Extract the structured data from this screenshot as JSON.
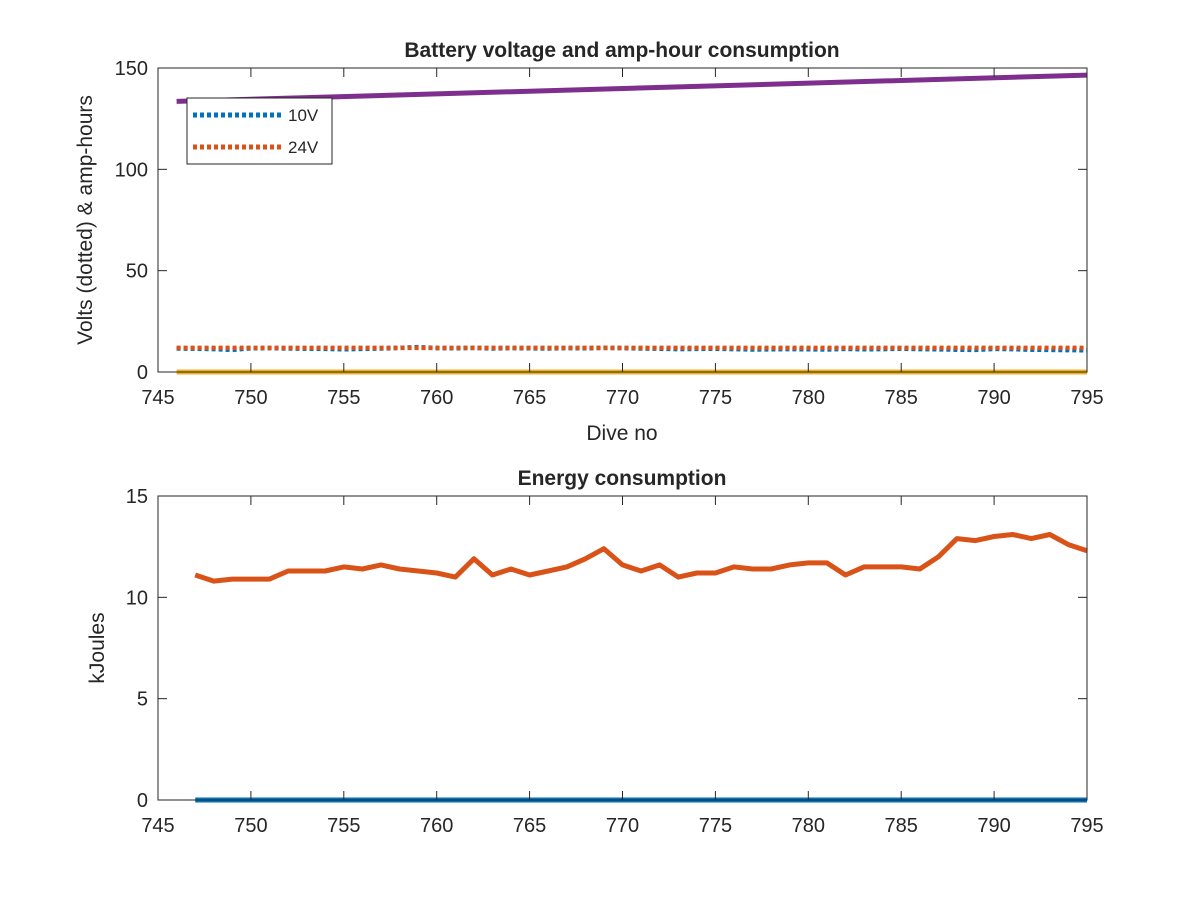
{
  "chart_data": [
    {
      "type": "line",
      "title": "Battery voltage and amp-hour consumption",
      "xlabel": "Dive no",
      "ylabel": "Volts (dotted) & amp-hours",
      "xlim": [
        745,
        795
      ],
      "ylim": [
        0,
        150
      ],
      "xticks": [
        745,
        750,
        755,
        760,
        765,
        770,
        775,
        780,
        785,
        790,
        795
      ],
      "yticks": [
        0,
        50,
        100,
        150
      ],
      "grid": false,
      "legend_position": "top-left",
      "series": [
        {
          "name": "10V",
          "color": "#0072BD",
          "style": "dotted",
          "x": [
            746,
            747,
            748,
            749,
            750,
            751,
            752,
            753,
            754,
            755,
            756,
            757,
            758,
            759,
            760,
            761,
            762,
            763,
            764,
            765,
            766,
            767,
            768,
            769,
            770,
            771,
            772,
            773,
            774,
            775,
            776,
            777,
            778,
            779,
            780,
            781,
            782,
            783,
            784,
            785,
            786,
            787,
            788,
            789,
            790,
            791,
            792,
            793,
            794,
            795
          ],
          "y": [
            11.6,
            11.5,
            11.3,
            10.9,
            11.7,
            11.8,
            11.6,
            11.5,
            11.4,
            11.2,
            11.4,
            11.6,
            11.9,
            12.3,
            11.8,
            11.7,
            11.9,
            11.6,
            11.8,
            11.7,
            11.6,
            11.8,
            11.7,
            11.9,
            11.8,
            11.6,
            11.5,
            11.3,
            11.4,
            11.5,
            11.3,
            11.1,
            11.2,
            11.3,
            11.2,
            11.1,
            11.4,
            11.2,
            11.3,
            11.5,
            11.3,
            11.2,
            11.0,
            10.9,
            11.4,
            11.3,
            11.0,
            10.9,
            10.8,
            10.7
          ]
        },
        {
          "name": "24V",
          "color": "#D95319",
          "style": "dotted",
          "x": [
            746,
            795
          ],
          "y": [
            11.9,
            11.9
          ]
        },
        {
          "color": "#EDB120",
          "style": "solid",
          "x": [
            746,
            795
          ],
          "y": [
            0,
            0
          ]
        },
        {
          "color": "#7E2F8E",
          "style": "solid",
          "x": [
            746,
            795
          ],
          "y": [
            133.5,
            146.5
          ]
        }
      ]
    },
    {
      "type": "line",
      "title": "Energy consumption",
      "xlabel": "",
      "ylabel": "kJoules",
      "xlim": [
        745,
        795
      ],
      "ylim": [
        0,
        15
      ],
      "xticks": [
        745,
        750,
        755,
        760,
        765,
        770,
        775,
        780,
        785,
        790,
        795
      ],
      "yticks": [
        0,
        5,
        10,
        15
      ],
      "grid": false,
      "series": [
        {
          "color": "#0072BD",
          "style": "solid",
          "x": [
            747,
            795
          ],
          "y": [
            0,
            0
          ]
        },
        {
          "color": "#D95319",
          "style": "solid",
          "x": [
            747,
            748,
            749,
            750,
            751,
            752,
            753,
            754,
            755,
            756,
            757,
            758,
            759,
            760,
            761,
            762,
            763,
            764,
            765,
            766,
            767,
            768,
            769,
            770,
            771,
            772,
            773,
            774,
            775,
            776,
            777,
            778,
            779,
            780,
            781,
            782,
            783,
            784,
            785,
            786,
            787,
            788,
            789,
            790,
            791,
            792,
            793,
            794,
            795
          ],
          "y": [
            11.1,
            10.8,
            10.9,
            10.9,
            10.9,
            11.3,
            11.3,
            11.3,
            11.5,
            11.4,
            11.6,
            11.4,
            11.3,
            11.2,
            11.0,
            11.9,
            11.1,
            11.4,
            11.1,
            11.3,
            11.5,
            11.9,
            12.4,
            11.6,
            11.3,
            11.6,
            11.0,
            11.2,
            11.2,
            11.5,
            11.4,
            11.4,
            11.6,
            11.7,
            11.7,
            11.1,
            11.5,
            11.5,
            11.5,
            11.4,
            12.0,
            12.9,
            12.8,
            13.0,
            13.1,
            12.9,
            13.1,
            12.6,
            12.3
          ]
        }
      ]
    }
  ]
}
